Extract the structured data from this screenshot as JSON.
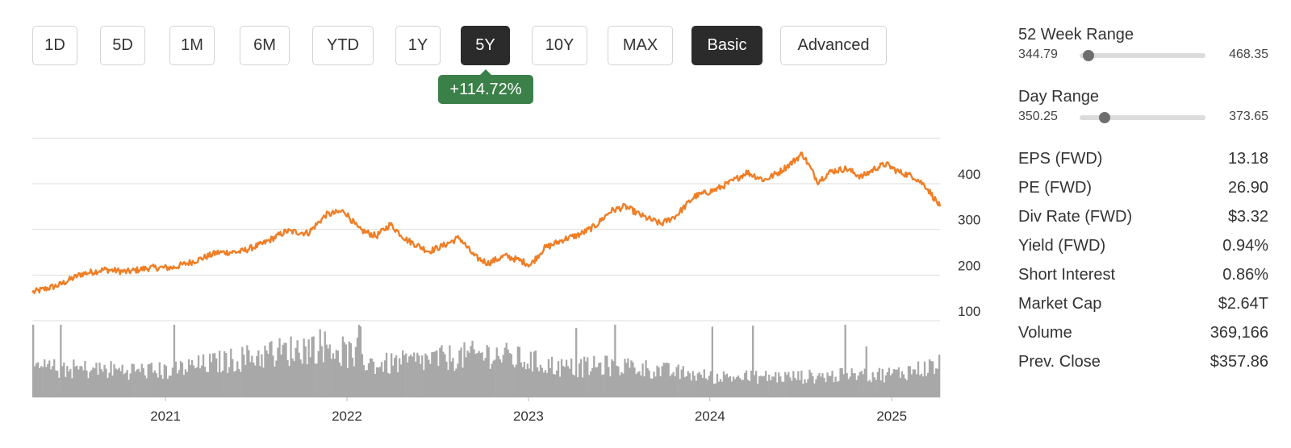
{
  "toolbar": {
    "ranges": [
      "1D",
      "5D",
      "1M",
      "6M",
      "YTD",
      "1Y",
      "5Y",
      "10Y",
      "MAX"
    ],
    "active_range": "5Y",
    "modes": [
      "Basic",
      "Advanced"
    ],
    "active_mode": "Basic"
  },
  "change_badge": "+114.72%",
  "colors": {
    "price_line": "#f07e26",
    "volume": "#a8a8a8",
    "active_button": "#2b2b2b",
    "badge": "#3b8048",
    "grid": "#dddddd"
  },
  "week52_range": {
    "label": "52 Week Range",
    "low": "344.79",
    "high": "468.35",
    "position": 0.07
  },
  "day_range": {
    "label": "Day Range",
    "low": "350.25",
    "high": "373.65",
    "position": 0.2
  },
  "stats": [
    {
      "label": "EPS (FWD)",
      "value": "13.18"
    },
    {
      "label": "PE (FWD)",
      "value": "26.90"
    },
    {
      "label": "Div Rate (FWD)",
      "value": "$3.32"
    },
    {
      "label": "Yield (FWD)",
      "value": "0.94%"
    },
    {
      "label": "Short Interest",
      "value": "0.86%"
    },
    {
      "label": "Market Cap",
      "value": "$2.64T"
    },
    {
      "label": "Volume",
      "value": "369,166"
    },
    {
      "label": "Prev. Close",
      "value": "$357.86"
    }
  ],
  "chart_data": {
    "type": "line",
    "title": "",
    "xlabel": "",
    "ylabel": "",
    "x_tick_labels": [
      "2021",
      "2022",
      "2023",
      "2024",
      "2025"
    ],
    "y_tick_labels": [
      "400",
      "300",
      "200",
      "100"
    ],
    "y_ticks": [
      400,
      300,
      200,
      100
    ],
    "ylim": [
      0,
      500
    ],
    "xlim": [
      "2020-04-08",
      "2025-04-08"
    ],
    "grid": true,
    "series": [
      {
        "x": [
          "2020-04-08",
          "2020-06-01",
          "2020-07-15",
          "2020-09-01",
          "2020-10-15",
          "2020-12-01",
          "2021-01-15",
          "2021-03-01",
          "2021-04-15",
          "2021-06-01",
          "2021-07-15",
          "2021-09-01",
          "2021-10-15",
          "2021-11-20",
          "2021-12-27",
          "2022-01-25",
          "2022-03-01",
          "2022-03-29",
          "2022-05-01",
          "2022-06-15",
          "2022-07-15",
          "2022-08-15",
          "2022-09-15",
          "2022-10-12",
          "2022-11-15",
          "2022-12-20",
          "2023-01-05",
          "2023-02-01",
          "2023-03-15",
          "2023-04-15",
          "2023-05-15",
          "2023-06-15",
          "2023-07-15",
          "2023-08-20",
          "2023-09-25",
          "2023-10-25",
          "2023-12-01",
          "2024-01-15",
          "2024-02-15",
          "2024-03-15",
          "2024-04-20",
          "2024-05-20",
          "2024-06-15",
          "2024-07-05",
          "2024-08-05",
          "2024-09-01",
          "2024-10-01",
          "2024-11-01",
          "2024-12-01",
          "2024-12-20",
          "2025-01-15",
          "2025-02-15",
          "2025-03-10",
          "2025-04-08"
        ],
        "y": [
          162,
          178,
          202,
          212,
          207,
          216,
          216,
          231,
          249,
          251,
          268,
          296,
          292,
          332,
          340,
          300,
          285,
          311,
          277,
          252,
          265,
          282,
          240,
          226,
          242,
          230,
          222,
          258,
          279,
          289,
          307,
          340,
          350,
          328,
          312,
          330,
          372,
          388,
          405,
          425,
          408,
          426,
          447,
          466,
          405,
          427,
          433,
          415,
          435,
          443,
          426,
          415,
          395,
          350
        ]
      }
    ],
    "volume_series": {
      "note_level": "relative",
      "x": [
        "2020-04-08",
        "2021-01-01",
        "2021-11-15",
        "2022-03-01",
        "2022-10-15",
        "2023-03-15",
        "2023-07-01",
        "2024-01-01",
        "2024-07-01",
        "2025-01-01",
        "2025-04-08"
      ],
      "y": [
        0.5,
        0.45,
        0.9,
        0.55,
        0.75,
        0.5,
        0.55,
        0.35,
        0.35,
        0.4,
        0.55
      ]
    }
  }
}
